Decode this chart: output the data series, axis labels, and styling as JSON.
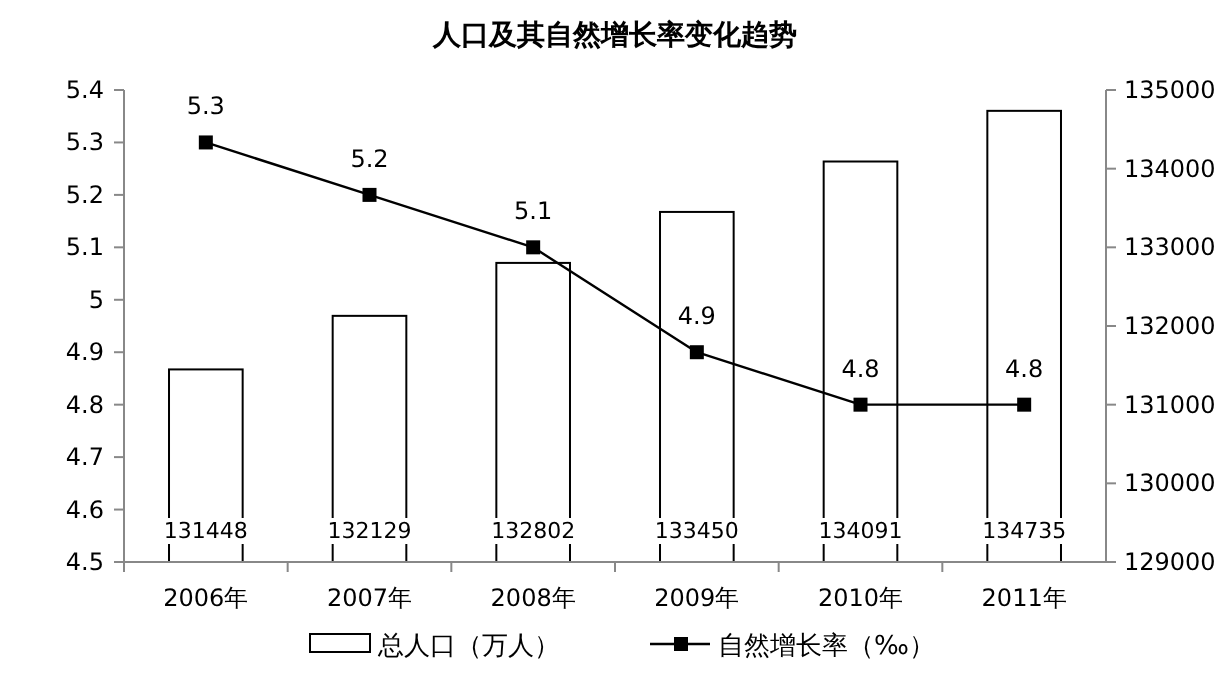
{
  "chart_data": {
    "type": "bar",
    "title": "人口及其自然增长率变化趋势",
    "categories": [
      "2006年",
      "2007年",
      "2008年",
      "2009年",
      "2010年",
      "2011年"
    ],
    "series": [
      {
        "name": "总人口（万人）",
        "type": "bar",
        "axis": "y2",
        "color": "#ffffff",
        "values": [
          131448,
          132129,
          132802,
          133450,
          134091,
          134735
        ]
      },
      {
        "name": "自然增长率（‰）",
        "type": "line",
        "axis": "y",
        "color": "#000000",
        "values": [
          5.3,
          5.2,
          5.1,
          4.9,
          4.8,
          4.8
        ]
      }
    ],
    "ylim": [
      4.5,
      5.4
    ],
    "yticks": [
      4.5,
      4.6,
      4.7,
      4.8,
      4.9,
      5,
      5.1,
      5.2,
      5.3,
      5.4
    ],
    "y2lim": [
      129000,
      135000
    ],
    "y2ticks": [
      129000,
      130000,
      131000,
      132000,
      133000,
      134000,
      135000
    ],
    "data_labels": true,
    "legend": "bottom",
    "marker": "square",
    "line_style": "solid"
  }
}
